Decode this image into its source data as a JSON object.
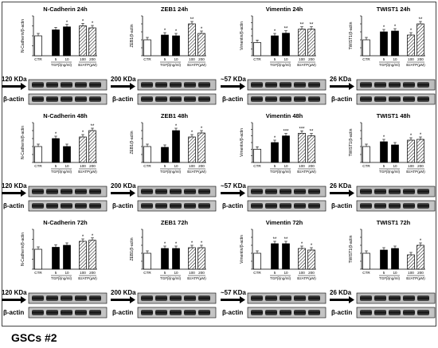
{
  "footer_label": "GSCs #2",
  "group_labels": {
    "tgf": "TGFβ(ng/ml)",
    "bz": "BzATP(μM)"
  },
  "beta_actin_label": "β-actin",
  "colors": {
    "ctr_fill": "#ffffff",
    "tgf_fill": "#000000",
    "bz_fill": "hatched",
    "blot_band": "#1a1a1a",
    "blot_bg": "#c8c8c8"
  },
  "chart_data": [
    {
      "type": "bar",
      "title": "N-Cadherin 24h",
      "ylabel": "N-Cadherin/β-actin",
      "marker": "120 KDa",
      "categories": [
        "CTR",
        "5",
        "10",
        "100",
        "200"
      ],
      "values": [
        1.0,
        1.3,
        1.45,
        1.5,
        1.4
      ],
      "significance": [
        "",
        "",
        "*",
        "*",
        "*"
      ],
      "ylim": [
        0,
        2
      ]
    },
    {
      "type": "bar",
      "title": "ZEB1 24h",
      "ylabel": "ZEB1/β-actin",
      "marker": "200 KDa",
      "categories": [
        "CTR",
        "5",
        "10",
        "100",
        "200"
      ],
      "values": [
        1.0,
        1.3,
        1.25,
        2.0,
        1.4
      ],
      "significance": [
        "",
        "*",
        "*",
        "**",
        "*"
      ],
      "ylim": [
        0,
        2.5
      ]
    },
    {
      "type": "bar",
      "title": "Vimentin 24h",
      "ylabel": "Vimentin/β-actin",
      "marker": "~57 KDa",
      "categories": [
        "CTR",
        "5",
        "10",
        "100",
        "200"
      ],
      "values": [
        1.0,
        1.5,
        1.7,
        2.0,
        2.0
      ],
      "significance": [
        "",
        "*",
        "**",
        "**",
        "**"
      ],
      "ylim": [
        0,
        3
      ]
    },
    {
      "type": "bar",
      "title": "TWIST1 24h",
      "ylabel": "TWIST1/β-actin",
      "marker": "26 KDa",
      "categories": [
        "CTR",
        "5",
        "10",
        "100",
        "200"
      ],
      "values": [
        1.0,
        1.5,
        1.55,
        1.3,
        2.0
      ],
      "significance": [
        "",
        "*",
        "*",
        "*",
        "**"
      ],
      "ylim": [
        0,
        2.5
      ]
    },
    {
      "type": "bar",
      "title": "N-Cadherin 48h",
      "ylabel": "N-Cadherin/β-actin",
      "marker": "120 KDa",
      "categories": [
        "CTR",
        "5",
        "10",
        "100",
        "200"
      ],
      "values": [
        1.0,
        1.5,
        1.0,
        1.6,
        2.0
      ],
      "significance": [
        "",
        "*",
        "",
        "*",
        "**"
      ],
      "ylim": [
        0,
        2.5
      ]
    },
    {
      "type": "bar",
      "title": "ZEB1 48h",
      "ylabel": "ZEB1/β-actin",
      "marker": "200 KDa",
      "categories": [
        "CTR",
        "5",
        "10",
        "100",
        "200"
      ],
      "values": [
        1.0,
        0.95,
        2.0,
        1.6,
        1.85
      ],
      "significance": [
        "",
        "",
        "*",
        "*",
        "*"
      ],
      "ylim": [
        0,
        2.5
      ]
    },
    {
      "type": "bar",
      "title": "Vimentin 48h",
      "ylabel": "Vimentin/β-actin",
      "marker": "~57 KDa",
      "categories": [
        "CTR",
        "5",
        "10",
        "100",
        "200"
      ],
      "values": [
        1.0,
        1.5,
        2.0,
        2.2,
        2.0
      ],
      "significance": [
        "",
        "*",
        "***",
        "***",
        "**"
      ],
      "ylim": [
        0,
        3
      ]
    },
    {
      "type": "bar",
      "title": "TWIST1 48h",
      "ylabel": "TWIST1/β-actin",
      "marker": "26 KDa",
      "categories": [
        "CTR",
        "5",
        "10",
        "100",
        "200"
      ],
      "values": [
        1.0,
        1.3,
        1.1,
        1.4,
        1.45
      ],
      "significance": [
        "",
        "*",
        "",
        "*",
        "*"
      ],
      "ylim": [
        0,
        2.5
      ]
    },
    {
      "type": "bar",
      "title": "N-Cadherin 72h",
      "ylabel": "N-Cadherin/β-actin",
      "marker": "120 KDa",
      "categories": [
        "CTR",
        "5",
        "10",
        "100",
        "200"
      ],
      "values": [
        1.0,
        1.1,
        1.2,
        1.4,
        1.45
      ],
      "significance": [
        "",
        "",
        "",
        "*",
        "*"
      ],
      "ylim": [
        0,
        2
      ]
    },
    {
      "type": "bar",
      "title": "ZEB1 72h",
      "ylabel": "ZEB1/β-actin",
      "marker": "200 KDa",
      "categories": [
        "CTR",
        "5",
        "10",
        "100",
        "200"
      ],
      "values": [
        1.0,
        1.3,
        1.3,
        1.35,
        1.35
      ],
      "significance": [
        "",
        "*",
        "*",
        "*",
        "*"
      ],
      "ylim": [
        0,
        2.5
      ]
    },
    {
      "type": "bar",
      "title": "Vimentin 72h",
      "ylabel": "Vimentin/β-actin",
      "marker": "~57 KDa",
      "categories": [
        "CTR",
        "5",
        "10",
        "100",
        "200"
      ],
      "values": [
        1.0,
        1.6,
        1.6,
        1.3,
        1.2
      ],
      "significance": [
        "",
        "**",
        "**",
        "*",
        "*"
      ],
      "ylim": [
        0,
        2.5
      ]
    },
    {
      "type": "bar",
      "title": "TWIST1 72h",
      "ylabel": "TWIST1/β-actin",
      "marker": "26 KDa",
      "categories": [
        "CTR",
        "5",
        "10",
        "100",
        "200"
      ],
      "values": [
        1.0,
        1.2,
        1.3,
        0.9,
        1.5
      ],
      "significance": [
        "",
        "",
        "",
        "",
        "*"
      ],
      "ylim": [
        0,
        2.5
      ]
    }
  ]
}
